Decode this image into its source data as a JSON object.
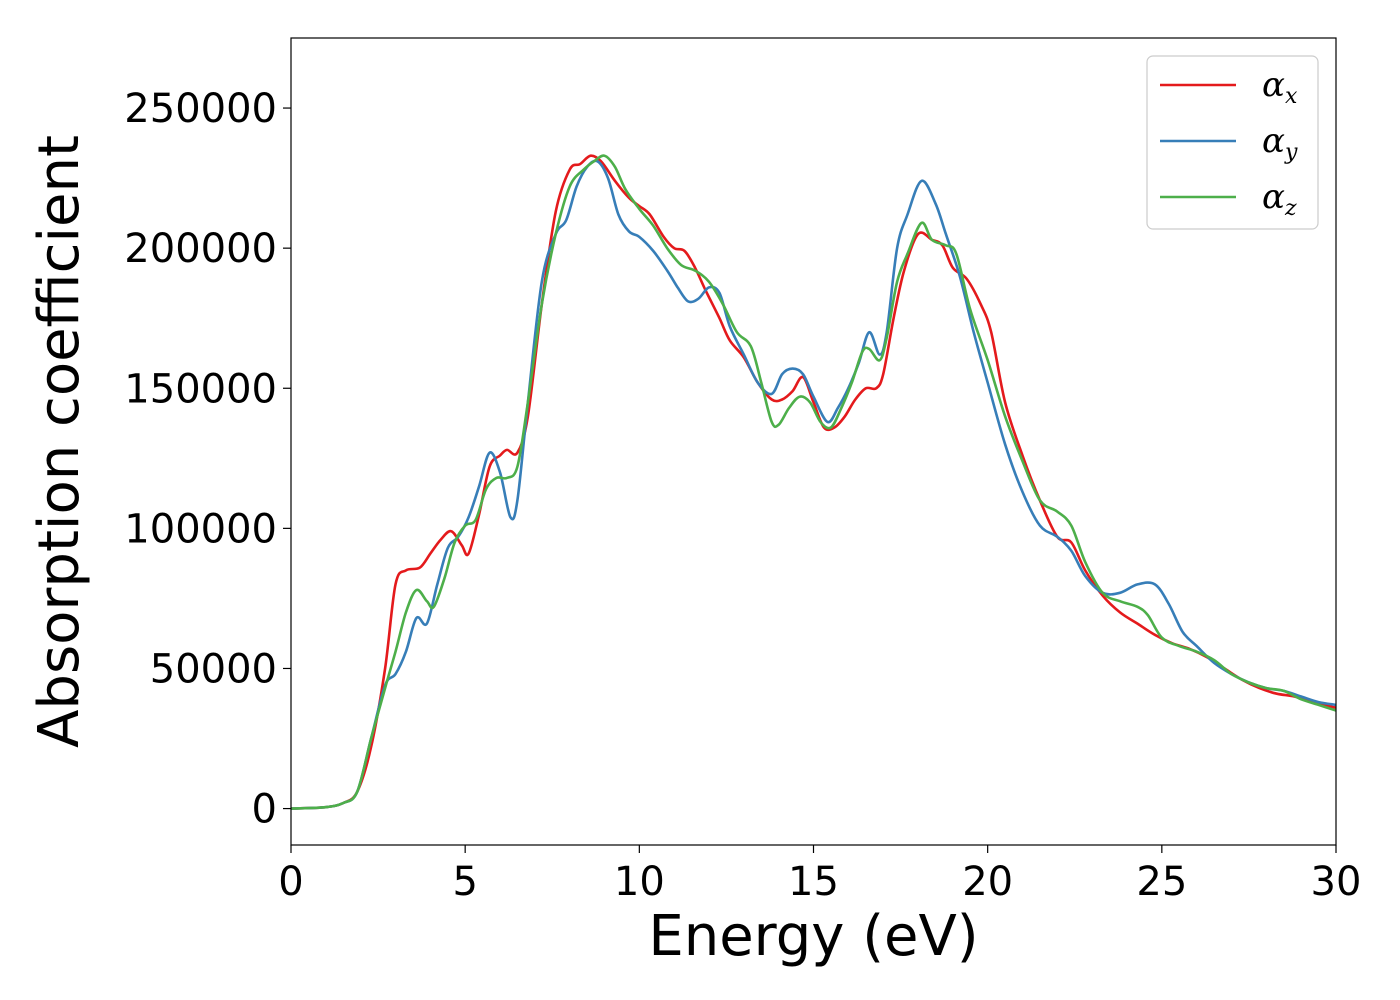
{
  "chart_data": {
    "type": "line",
    "title": "",
    "xlabel": "Energy (eV)",
    "ylabel": "Absorption coefficient",
    "xlim": [
      0,
      30
    ],
    "ylim": [
      -13000,
      275000
    ],
    "xticks": [
      "0",
      "5",
      "10",
      "15",
      "20",
      "25",
      "30"
    ],
    "yticks": [
      "0",
      "50000",
      "100000",
      "150000",
      "200000",
      "250000"
    ],
    "grid": false,
    "legend_position": "top-right",
    "legend": [
      {
        "symbol": "α",
        "sub": "x"
      },
      {
        "symbol": "α",
        "sub": "y"
      },
      {
        "symbol": "α",
        "sub": "z"
      }
    ],
    "series": [
      {
        "color": "#e41a1c",
        "points": [
          [
            0,
            0
          ],
          [
            1,
            500
          ],
          [
            1.5,
            2000
          ],
          [
            1.9,
            6000
          ],
          [
            2.3,
            22000
          ],
          [
            2.7,
            50000
          ],
          [
            3.0,
            80000
          ],
          [
            3.3,
            85000
          ],
          [
            3.7,
            86000
          ],
          [
            4.0,
            91000
          ],
          [
            4.3,
            96000
          ],
          [
            4.6,
            99000
          ],
          [
            4.9,
            94000
          ],
          [
            5.1,
            91000
          ],
          [
            5.4,
            105000
          ],
          [
            5.7,
            122000
          ],
          [
            6.0,
            126000
          ],
          [
            6.2,
            128000
          ],
          [
            6.5,
            127000
          ],
          [
            6.8,
            140000
          ],
          [
            7.2,
            180000
          ],
          [
            7.6,
            213000
          ],
          [
            8.0,
            228000
          ],
          [
            8.3,
            230000
          ],
          [
            8.6,
            233000
          ],
          [
            8.9,
            231000
          ],
          [
            9.3,
            224000
          ],
          [
            9.7,
            218000
          ],
          [
            10.0,
            215000
          ],
          [
            10.3,
            212000
          ],
          [
            10.7,
            204000
          ],
          [
            11.0,
            200000
          ],
          [
            11.3,
            199000
          ],
          [
            11.6,
            193000
          ],
          [
            11.9,
            185000
          ],
          [
            12.3,
            175000
          ],
          [
            12.6,
            167000
          ],
          [
            13.0,
            161000
          ],
          [
            13.4,
            152000
          ],
          [
            13.8,
            146000
          ],
          [
            14.1,
            146000
          ],
          [
            14.4,
            149000
          ],
          [
            14.7,
            154000
          ],
          [
            15.0,
            145000
          ],
          [
            15.3,
            136000
          ],
          [
            15.6,
            136000
          ],
          [
            15.9,
            140000
          ],
          [
            16.2,
            146000
          ],
          [
            16.5,
            150000
          ],
          [
            16.8,
            150000
          ],
          [
            17.0,
            155000
          ],
          [
            17.3,
            175000
          ],
          [
            17.6,
            192000
          ],
          [
            18.0,
            205000
          ],
          [
            18.4,
            203000
          ],
          [
            18.7,
            201000
          ],
          [
            19.0,
            193000
          ],
          [
            19.4,
            189000
          ],
          [
            19.8,
            180000
          ],
          [
            20.1,
            170000
          ],
          [
            20.5,
            145000
          ],
          [
            21.0,
            126000
          ],
          [
            21.5,
            110000
          ],
          [
            22.0,
            97000
          ],
          [
            22.4,
            95000
          ],
          [
            22.8,
            85000
          ],
          [
            23.3,
            76000
          ],
          [
            23.8,
            70000
          ],
          [
            24.3,
            66000
          ],
          [
            24.8,
            62000
          ],
          [
            25.3,
            59000
          ],
          [
            25.8,
            57000
          ],
          [
            26.3,
            54000
          ],
          [
            26.8,
            50000
          ],
          [
            27.3,
            46000
          ],
          [
            27.8,
            43000
          ],
          [
            28.3,
            41000
          ],
          [
            28.8,
            40000
          ],
          [
            29.3,
            38000
          ],
          [
            30,
            36000
          ]
        ]
      },
      {
        "color": "#377eb8",
        "points": [
          [
            0,
            0
          ],
          [
            1,
            500
          ],
          [
            1.5,
            2000
          ],
          [
            1.9,
            6000
          ],
          [
            2.3,
            25000
          ],
          [
            2.7,
            44000
          ],
          [
            3.0,
            48000
          ],
          [
            3.3,
            56000
          ],
          [
            3.6,
            68000
          ],
          [
            3.9,
            66000
          ],
          [
            4.2,
            80000
          ],
          [
            4.5,
            93000
          ],
          [
            4.8,
            97000
          ],
          [
            5.1,
            104000
          ],
          [
            5.4,
            115000
          ],
          [
            5.7,
            127000
          ],
          [
            6.0,
            120000
          ],
          [
            6.3,
            104000
          ],
          [
            6.5,
            110000
          ],
          [
            6.8,
            145000
          ],
          [
            7.2,
            188000
          ],
          [
            7.6,
            205000
          ],
          [
            7.9,
            210000
          ],
          [
            8.2,
            222000
          ],
          [
            8.5,
            229000
          ],
          [
            8.8,
            231000
          ],
          [
            9.1,
            225000
          ],
          [
            9.4,
            212000
          ],
          [
            9.7,
            206000
          ],
          [
            10.0,
            204000
          ],
          [
            10.4,
            199000
          ],
          [
            10.8,
            192000
          ],
          [
            11.1,
            186000
          ],
          [
            11.4,
            181000
          ],
          [
            11.7,
            182000
          ],
          [
            12.0,
            186000
          ],
          [
            12.3,
            184000
          ],
          [
            12.6,
            172000
          ],
          [
            13.0,
            162000
          ],
          [
            13.4,
            152000
          ],
          [
            13.8,
            148000
          ],
          [
            14.1,
            155000
          ],
          [
            14.4,
            157000
          ],
          [
            14.7,
            155000
          ],
          [
            15.0,
            147000
          ],
          [
            15.4,
            138000
          ],
          [
            15.7,
            143000
          ],
          [
            16.0,
            150000
          ],
          [
            16.3,
            159000
          ],
          [
            16.6,
            170000
          ],
          [
            16.9,
            162000
          ],
          [
            17.1,
            170000
          ],
          [
            17.4,
            200000
          ],
          [
            17.7,
            212000
          ],
          [
            18.1,
            224000
          ],
          [
            18.5,
            216000
          ],
          [
            18.8,
            205000
          ],
          [
            19.2,
            190000
          ],
          [
            19.6,
            170000
          ],
          [
            20.0,
            152000
          ],
          [
            20.5,
            130000
          ],
          [
            21.0,
            113000
          ],
          [
            21.5,
            101000
          ],
          [
            22.0,
            97000
          ],
          [
            22.4,
            92000
          ],
          [
            22.8,
            83000
          ],
          [
            23.3,
            77000
          ],
          [
            23.8,
            77000
          ],
          [
            24.3,
            80000
          ],
          [
            24.8,
            80000
          ],
          [
            25.2,
            73000
          ],
          [
            25.6,
            63000
          ],
          [
            26.0,
            58000
          ],
          [
            26.5,
            52000
          ],
          [
            27.0,
            48000
          ],
          [
            27.5,
            45000
          ],
          [
            28.0,
            43000
          ],
          [
            28.5,
            42000
          ],
          [
            29.0,
            40000
          ],
          [
            29.5,
            38000
          ],
          [
            30,
            37000
          ]
        ]
      },
      {
        "color": "#4daf4a",
        "points": [
          [
            0,
            0
          ],
          [
            1,
            500
          ],
          [
            1.5,
            2000
          ],
          [
            1.9,
            6000
          ],
          [
            2.3,
            25000
          ],
          [
            2.7,
            43000
          ],
          [
            3.0,
            56000
          ],
          [
            3.3,
            70000
          ],
          [
            3.6,
            78000
          ],
          [
            3.9,
            74000
          ],
          [
            4.1,
            72000
          ],
          [
            4.4,
            82000
          ],
          [
            4.7,
            95000
          ],
          [
            5.0,
            101000
          ],
          [
            5.3,
            103000
          ],
          [
            5.6,
            114000
          ],
          [
            5.9,
            118000
          ],
          [
            6.2,
            118000
          ],
          [
            6.5,
            122000
          ],
          [
            6.8,
            145000
          ],
          [
            7.2,
            180000
          ],
          [
            7.6,
            205000
          ],
          [
            8.0,
            222000
          ],
          [
            8.4,
            228000
          ],
          [
            8.7,
            231000
          ],
          [
            9.0,
            233000
          ],
          [
            9.3,
            229000
          ],
          [
            9.6,
            221000
          ],
          [
            10.0,
            214000
          ],
          [
            10.4,
            208000
          ],
          [
            10.8,
            200000
          ],
          [
            11.2,
            194000
          ],
          [
            11.6,
            192000
          ],
          [
            12.0,
            188000
          ],
          [
            12.4,
            180000
          ],
          [
            12.8,
            170000
          ],
          [
            13.2,
            165000
          ],
          [
            13.5,
            152000
          ],
          [
            13.8,
            138000
          ],
          [
            14.0,
            137000
          ],
          [
            14.3,
            143000
          ],
          [
            14.6,
            147000
          ],
          [
            14.9,
            145000
          ],
          [
            15.2,
            138000
          ],
          [
            15.5,
            136000
          ],
          [
            15.8,
            143000
          ],
          [
            16.1,
            152000
          ],
          [
            16.4,
            163000
          ],
          [
            16.6,
            164000
          ],
          [
            16.9,
            160000
          ],
          [
            17.1,
            168000
          ],
          [
            17.4,
            188000
          ],
          [
            17.7,
            198000
          ],
          [
            18.1,
            209000
          ],
          [
            18.4,
            203000
          ],
          [
            18.8,
            201000
          ],
          [
            19.1,
            198000
          ],
          [
            19.5,
            178000
          ],
          [
            20.0,
            160000
          ],
          [
            20.5,
            140000
          ],
          [
            21.0,
            124000
          ],
          [
            21.5,
            110000
          ],
          [
            22.0,
            106000
          ],
          [
            22.4,
            101000
          ],
          [
            22.8,
            88000
          ],
          [
            23.3,
            77000
          ],
          [
            23.8,
            74000
          ],
          [
            24.3,
            72000
          ],
          [
            24.6,
            69000
          ],
          [
            25.0,
            61000
          ],
          [
            25.5,
            58000
          ],
          [
            26.0,
            56000
          ],
          [
            26.5,
            53000
          ],
          [
            27.0,
            48000
          ],
          [
            27.5,
            45000
          ],
          [
            28.0,
            43000
          ],
          [
            28.5,
            42000
          ],
          [
            29.0,
            39000
          ],
          [
            29.5,
            37000
          ],
          [
            30,
            35000
          ]
        ]
      }
    ]
  }
}
